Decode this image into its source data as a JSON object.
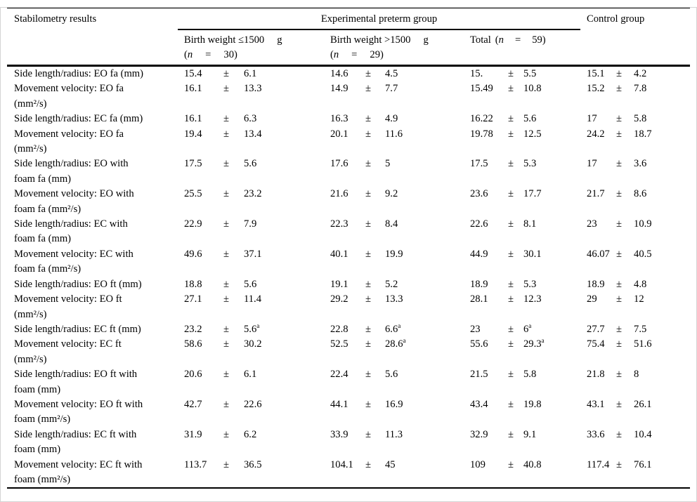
{
  "table": {
    "pm_symbol": "±",
    "header": {
      "col1": "Stabilometry results",
      "group": "Experimental preterm group",
      "control": "Control group"
    },
    "subheaders": [
      {
        "line1_text": "Birth weight ≤1500",
        "line1_unit": "g",
        "open_paren": "(",
        "n_italic": "n",
        "equals": "=",
        "n_value": "30)"
      },
      {
        "line1_text": "Birth weight >1500",
        "line1_unit": "g",
        "open_paren": "(",
        "n_italic": "n",
        "equals": "=",
        "n_value": "29)"
      },
      {
        "prefix": "Total",
        "open_paren": "(",
        "n_italic": "n",
        "equals": "=",
        "n_value": "59)"
      }
    ],
    "rows": [
      {
        "label_lines": [
          "Side length/radius: EO fa (mm)"
        ],
        "cells": [
          {
            "m": "15.4",
            "sd": "6.1"
          },
          {
            "m": "14.6",
            "sd": "4.5"
          },
          {
            "m": "15.",
            "sd": "5.5"
          },
          {
            "m": "15.1",
            "sd": "4.2"
          }
        ]
      },
      {
        "label_lines": [
          "Movement velocity: EO fa",
          "(mm²/s)"
        ],
        "cells": [
          {
            "m": "16.1",
            "sd": "13.3"
          },
          {
            "m": "14.9",
            "sd": "7.7"
          },
          {
            "m": "15.49",
            "sd": "10.8"
          },
          {
            "m": "15.2",
            "sd": "7.8"
          }
        ]
      },
      {
        "label_lines": [
          "Side length/radius: EC fa (mm)"
        ],
        "cells": [
          {
            "m": "16.1",
            "sd": "6.3"
          },
          {
            "m": "16.3",
            "sd": "4.9"
          },
          {
            "m": "16.22",
            "sd": "5.6"
          },
          {
            "m": "17",
            "sd": "5.8"
          }
        ]
      },
      {
        "label_lines": [
          "Movement velocity: EO fa",
          "(mm²/s)"
        ],
        "cells": [
          {
            "m": "19.4",
            "sd": "13.4"
          },
          {
            "m": "20.1",
            "sd": "11.6"
          },
          {
            "m": "19.78",
            "sd": "12.5"
          },
          {
            "m": "24.2",
            "sd": "18.7"
          }
        ]
      },
      {
        "label_lines": [
          "Side length/radius: EO with",
          "foam fa (mm)"
        ],
        "cells": [
          {
            "m": "17.5",
            "sd": "5.6"
          },
          {
            "m": "17.6",
            "sd": "5"
          },
          {
            "m": "17.5",
            "sd": "5.3"
          },
          {
            "m": "17",
            "sd": "3.6"
          }
        ]
      },
      {
        "label_lines": [
          "Movement velocity: EO with",
          "foam fa (mm²/s)"
        ],
        "cells": [
          {
            "m": "25.5",
            "sd": "23.2"
          },
          {
            "m": "21.6",
            "sd": "9.2"
          },
          {
            "m": "23.6",
            "sd": "17.7"
          },
          {
            "m": "21.7",
            "sd": "8.6"
          }
        ]
      },
      {
        "label_lines": [
          "Side length/radius: EC with",
          "foam fa (mm)"
        ],
        "cells": [
          {
            "m": "22.9",
            "sd": "7.9"
          },
          {
            "m": "22.3",
            "sd": "8.4"
          },
          {
            "m": "22.6",
            "sd": "8.1"
          },
          {
            "m": "23",
            "sd": "10.9"
          }
        ]
      },
      {
        "label_lines": [
          "Movement velocity: EC with",
          "foam fa (mm²/s)"
        ],
        "cells": [
          {
            "m": "49.6",
            "sd": "37.1"
          },
          {
            "m": "40.1",
            "sd": "19.9"
          },
          {
            "m": "44.9",
            "sd": "30.1"
          },
          {
            "m": "46.07",
            "sd": "40.5"
          }
        ]
      },
      {
        "label_lines": [
          "Side length/radius: EO ft (mm)"
        ],
        "cells": [
          {
            "m": "18.8",
            "sd": "5.6"
          },
          {
            "m": "19.1",
            "sd": "5.2"
          },
          {
            "m": "18.9",
            "sd": "5.3"
          },
          {
            "m": "18.9",
            "sd": "4.8"
          }
        ]
      },
      {
        "label_lines": [
          "Movement velocity: EO ft",
          "(mm²/s)"
        ],
        "cells": [
          {
            "m": "27.1",
            "sd": "11.4"
          },
          {
            "m": "29.2",
            "sd": "13.3"
          },
          {
            "m": "28.1",
            "sd": "12.3"
          },
          {
            "m": "29",
            "sd": "12"
          }
        ]
      },
      {
        "label_lines": [
          "Side length/radius: EC ft (mm)"
        ],
        "cells": [
          {
            "m": "23.2",
            "sd": "5.6",
            "sup": "a"
          },
          {
            "m": "22.8",
            "sd": "6.6",
            "sup": "a"
          },
          {
            "m": "23",
            "sd": "6",
            "sup": "a"
          },
          {
            "m": "27.7",
            "sd": "7.5"
          }
        ]
      },
      {
        "label_lines": [
          "Movement velocity: EC ft",
          "(mm²/s)"
        ],
        "cells": [
          {
            "m": "58.6",
            "sd": "30.2"
          },
          {
            "m": "52.5",
            "sd": "28.6",
            "sup": "a"
          },
          {
            "m": "55.6",
            "sd": "29.3",
            "sup": "a"
          },
          {
            "m": "75.4",
            "sd": "51.6"
          }
        ]
      },
      {
        "label_lines": [
          "Side length/radius: EO ft with",
          "foam (mm)"
        ],
        "cells": [
          {
            "m": "20.6",
            "sd": "6.1"
          },
          {
            "m": "22.4",
            "sd": "5.6"
          },
          {
            "m": "21.5",
            "sd": "5.8"
          },
          {
            "m": "21.8",
            "sd": "8"
          }
        ]
      },
      {
        "label_lines": [
          "Movement velocity: EO ft with",
          "foam (mm²/s)"
        ],
        "cells": [
          {
            "m": "42.7",
            "sd": "22.6"
          },
          {
            "m": "44.1",
            "sd": "16.9"
          },
          {
            "m": "43.4",
            "sd": "19.8"
          },
          {
            "m": "43.1",
            "sd": "26.1"
          }
        ]
      },
      {
        "label_lines": [
          "Side length/radius: EC ft with",
          "foam (mm)"
        ],
        "cells": [
          {
            "m": "31.9",
            "sd": "6.2"
          },
          {
            "m": "33.9",
            "sd": "11.3"
          },
          {
            "m": "32.9",
            "sd": "9.1"
          },
          {
            "m": "33.6",
            "sd": "10.4"
          }
        ]
      },
      {
        "label_lines": [
          "Movement velocity: EC ft with",
          "foam (mm²/s)"
        ],
        "cells": [
          {
            "m": "113.7",
            "sd": "36.5"
          },
          {
            "m": "104.1",
            "sd": "45"
          },
          {
            "m": "109",
            "sd": "40.8"
          },
          {
            "m": "117.4",
            "sd": "76.1"
          }
        ]
      }
    ]
  }
}
